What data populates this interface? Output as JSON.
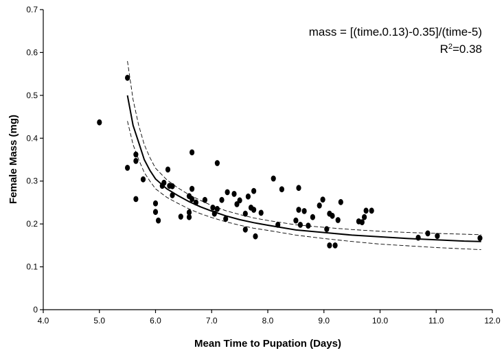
{
  "chart_data": {
    "type": "scatter",
    "title": "",
    "xlabel": "Mean Time to Pupation (Days)",
    "ylabel": "Female Mass (mg)",
    "xlim": [
      4.0,
      12.0
    ],
    "ylim": [
      0,
      0.7
    ],
    "xticks": [
      "4.0",
      "5.0",
      "6.0",
      "7.0",
      "8.0",
      "9.0",
      "10.0",
      "11.0",
      "12.0"
    ],
    "yticks": [
      "0",
      "0.1",
      "0.2",
      "0.3",
      "0.4",
      "0.5",
      "0.6",
      "0.7"
    ],
    "grid": false,
    "annotation": {
      "equation_prefix": "mass = [(time",
      "equation_mul": "*",
      "equation_suffix": "0.13)-0.35]/(time-5)",
      "r2_label": "R",
      "r2_sup": "2",
      "r2_value": "=0.38"
    },
    "points": [
      [
        5.0,
        0.437
      ],
      [
        5.5,
        0.541
      ],
      [
        5.5,
        0.331
      ],
      [
        5.65,
        0.347
      ],
      [
        5.65,
        0.362
      ],
      [
        5.65,
        0.258
      ],
      [
        5.78,
        0.304
      ],
      [
        6.0,
        0.248
      ],
      [
        6.0,
        0.228
      ],
      [
        6.05,
        0.208
      ],
      [
        6.12,
        0.289
      ],
      [
        6.15,
        0.296
      ],
      [
        6.22,
        0.327
      ],
      [
        6.25,
        0.289
      ],
      [
        6.3,
        0.288
      ],
      [
        6.3,
        0.267
      ],
      [
        6.45,
        0.217
      ],
      [
        6.6,
        0.265
      ],
      [
        6.6,
        0.227
      ],
      [
        6.6,
        0.216
      ],
      [
        6.65,
        0.367
      ],
      [
        6.65,
        0.282
      ],
      [
        6.65,
        0.258
      ],
      [
        6.72,
        0.25
      ],
      [
        6.88,
        0.256
      ],
      [
        7.02,
        0.238
      ],
      [
        7.05,
        0.224
      ],
      [
        7.1,
        0.342
      ],
      [
        7.1,
        0.235
      ],
      [
        7.18,
        0.256
      ],
      [
        7.25,
        0.212
      ],
      [
        7.28,
        0.274
      ],
      [
        7.4,
        0.27
      ],
      [
        7.45,
        0.246
      ],
      [
        7.5,
        0.255
      ],
      [
        7.6,
        0.224
      ],
      [
        7.6,
        0.187
      ],
      [
        7.65,
        0.264
      ],
      [
        7.7,
        0.238
      ],
      [
        7.75,
        0.277
      ],
      [
        7.75,
        0.233
      ],
      [
        7.78,
        0.171
      ],
      [
        7.88,
        0.226
      ],
      [
        8.1,
        0.306
      ],
      [
        8.18,
        0.198
      ],
      [
        8.25,
        0.281
      ],
      [
        8.5,
        0.208
      ],
      [
        8.55,
        0.284
      ],
      [
        8.55,
        0.233
      ],
      [
        8.58,
        0.198
      ],
      [
        8.65,
        0.23
      ],
      [
        8.72,
        0.196
      ],
      [
        8.8,
        0.216
      ],
      [
        8.92,
        0.243
      ],
      [
        8.98,
        0.257
      ],
      [
        9.05,
        0.188
      ],
      [
        9.1,
        0.224
      ],
      [
        9.1,
        0.15
      ],
      [
        9.15,
        0.219
      ],
      [
        9.2,
        0.15
      ],
      [
        9.25,
        0.209
      ],
      [
        9.3,
        0.251
      ],
      [
        9.62,
        0.206
      ],
      [
        9.68,
        0.204
      ],
      [
        9.72,
        0.216
      ],
      [
        9.75,
        0.231
      ],
      [
        9.85,
        0.231
      ],
      [
        10.68,
        0.168
      ],
      [
        10.85,
        0.178
      ],
      [
        11.02,
        0.172
      ],
      [
        11.78,
        0.167
      ]
    ],
    "fit": {
      "name": "",
      "x": [
        5.5,
        5.6,
        5.7,
        5.8,
        5.9,
        6.0,
        6.2,
        6.4,
        6.6,
        6.8,
        7.0,
        7.25,
        7.5,
        7.75,
        8.0,
        8.5,
        9.0,
        9.5,
        10.0,
        10.5,
        11.0,
        11.5,
        11.8
      ],
      "y": [
        0.5,
        0.43,
        0.39,
        0.35,
        0.325,
        0.305,
        0.282,
        0.266,
        0.252,
        0.24,
        0.23,
        0.219,
        0.21,
        0.203,
        0.197,
        0.186,
        0.18,
        0.174,
        0.17,
        0.166,
        0.163,
        0.16,
        0.159
      ]
    },
    "ci_upper": {
      "name": "",
      "x": [
        5.5,
        5.6,
        5.7,
        5.8,
        5.9,
        6.0,
        6.2,
        6.4,
        6.6,
        6.8,
        7.0,
        7.25,
        7.5,
        7.75,
        8.0,
        8.5,
        9.0,
        9.5,
        10.0,
        10.5,
        11.0,
        11.5,
        11.8
      ],
      "y": [
        0.58,
        0.49,
        0.43,
        0.385,
        0.355,
        0.33,
        0.303,
        0.284,
        0.268,
        0.255,
        0.243,
        0.231,
        0.222,
        0.214,
        0.208,
        0.198,
        0.192,
        0.187,
        0.183,
        0.18,
        0.178,
        0.176,
        0.175
      ]
    },
    "ci_lower": {
      "name": "",
      "x": [
        5.5,
        5.6,
        5.7,
        5.8,
        5.9,
        6.0,
        6.2,
        6.4,
        6.6,
        6.8,
        7.0,
        7.25,
        7.5,
        7.75,
        8.0,
        8.5,
        9.0,
        9.5,
        10.0,
        10.5,
        11.0,
        11.5,
        11.8
      ],
      "y": [
        0.44,
        0.385,
        0.35,
        0.32,
        0.3,
        0.282,
        0.262,
        0.248,
        0.235,
        0.224,
        0.215,
        0.205,
        0.197,
        0.19,
        0.185,
        0.174,
        0.166,
        0.159,
        0.153,
        0.149,
        0.145,
        0.142,
        0.14
      ]
    }
  }
}
